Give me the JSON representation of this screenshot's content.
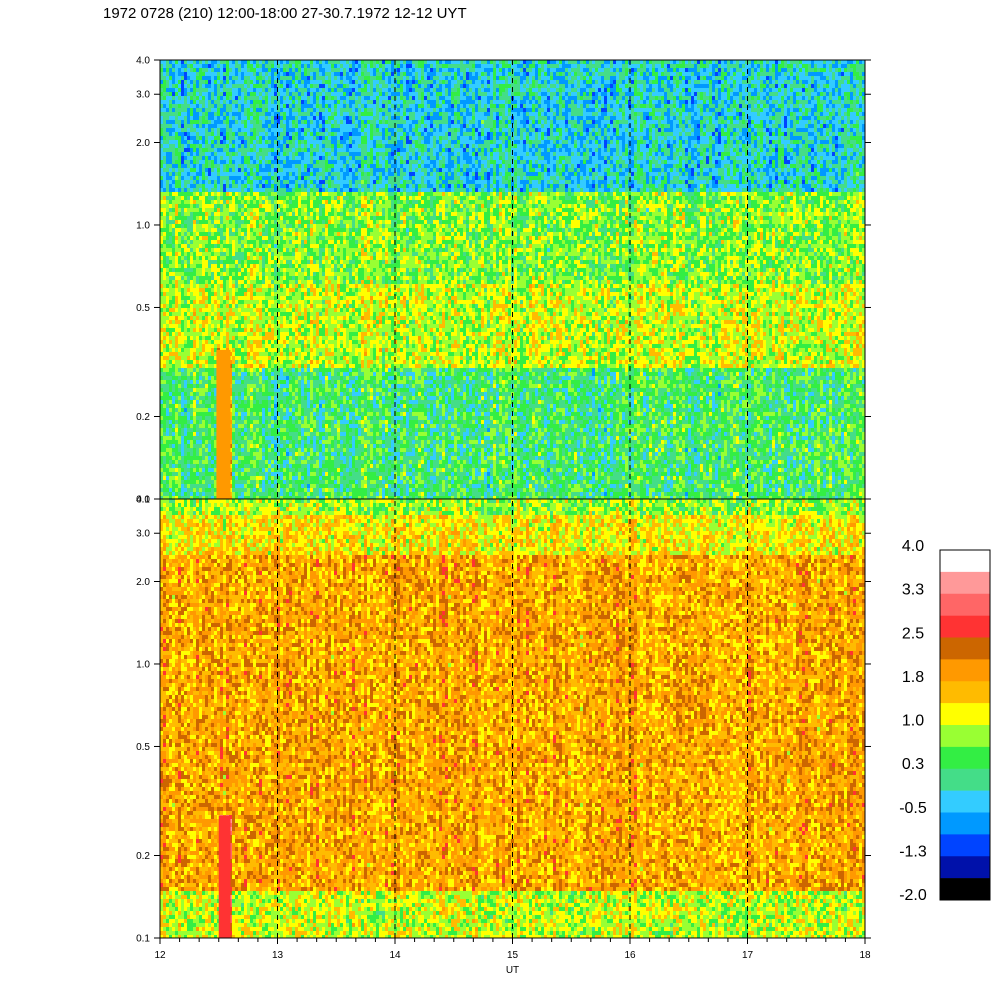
{
  "title": "1972 0728 (210) 12:00-18:00 27-30.7.1972  12-12 UYT",
  "chart_data": {
    "type": "heatmap",
    "xlabel": "UT",
    "x_range": [
      12,
      18
    ],
    "x_ticks": [
      "12",
      "13",
      "14",
      "15",
      "16",
      "17",
      "18"
    ],
    "y_scale": "log",
    "y_range": [
      0.1,
      4.0
    ],
    "y_ticks": [
      {
        "value": 0.1,
        "label": "0.1"
      },
      {
        "value": 0.2,
        "label": "0.2"
      },
      {
        "value": 0.5,
        "label": "0.5"
      },
      {
        "value": 1.0,
        "label": "1.0"
      },
      {
        "value": 2.0,
        "label": "2.0"
      },
      {
        "value": 3.0,
        "label": "3.0"
      },
      {
        "value": 4.0,
        "label": "4.0"
      }
    ],
    "dashed_vertical_lines_at": [
      13,
      14,
      15,
      16,
      17
    ],
    "panels": [
      {
        "name": "upper",
        "bands": [
          {
            "y_from": 0.1,
            "y_to": 0.3,
            "level": 0.3
          },
          {
            "y_from": 0.3,
            "y_to": 0.6,
            "level": 1.0
          },
          {
            "y_from": 0.6,
            "y_to": 1.3,
            "level": 0.7
          },
          {
            "y_from": 1.3,
            "y_to": 4.0,
            "level": -0.2
          }
        ],
        "features": [
          {
            "x_from": 12.48,
            "x_to": 12.6,
            "y_from": 0.1,
            "y_to": 0.35,
            "level": 1.8
          }
        ]
      },
      {
        "name": "lower",
        "bands": [
          {
            "y_from": 0.1,
            "y_to": 0.15,
            "level": 1.0
          },
          {
            "y_from": 0.15,
            "y_to": 2.5,
            "level": 1.8
          },
          {
            "y_from": 2.5,
            "y_to": 3.5,
            "level": 1.3
          },
          {
            "y_from": 3.5,
            "y_to": 4.0,
            "level": 0.8
          }
        ],
        "features": [
          {
            "x_from": 12.5,
            "x_to": 12.6,
            "y_from": 0.1,
            "y_to": 0.28,
            "level": 2.7
          }
        ]
      }
    ],
    "colorbar": {
      "labels": [
        "4.0",
        "3.3",
        "2.5",
        "1.8",
        "1.0",
        "0.3",
        "-0.5",
        "-1.3",
        "-2.0"
      ],
      "levels": [
        4.0,
        3.3,
        2.5,
        1.8,
        1.0,
        0.3,
        -0.5,
        -1.3,
        -2.0
      ],
      "colors": [
        "#ffffff",
        "#ff9999",
        "#ff6666",
        "#ff3333",
        "#cc6600",
        "#ff9900",
        "#ffbb00",
        "#ffff00",
        "#99ff33",
        "#33ee44",
        "#44dd88",
        "#33ccff",
        "#0099ff",
        "#0044ff",
        "#0011aa",
        "#000000"
      ]
    }
  }
}
